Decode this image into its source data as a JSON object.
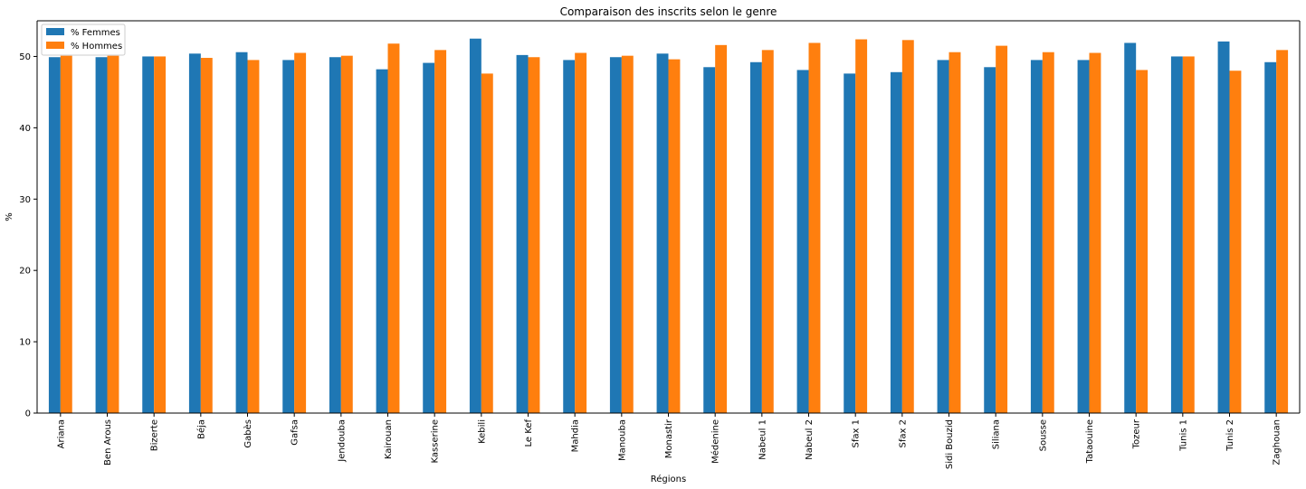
{
  "chart_data": {
    "type": "bar",
    "title": "Comparaison des inscrits selon le genre",
    "xlabel": "Régions",
    "ylabel": "%",
    "ylim": [
      0,
      55
    ],
    "yticks": [
      0,
      10,
      20,
      30,
      40,
      50
    ],
    "grid": false,
    "legend_position": "top-left",
    "categories": [
      "Ariana",
      "Ben Arous",
      "Bizerte",
      "Béja",
      "Gabès",
      "Gafsa",
      "Jendouba",
      "Kairouan",
      "Kasserine",
      "Kebili",
      "Le Kef",
      "Mahdia",
      "Manouba",
      "Monastir",
      "Médenine",
      "Nabeul 1",
      "Nabeul 2",
      "Sfax 1",
      "Sfax 2",
      "Sidi Bouzid",
      "Siliana",
      "Sousse",
      "Tataouine",
      "Tozeur",
      "Tunis 1",
      "Tunis 2",
      "Zaghouan"
    ],
    "series": [
      {
        "name": "% Femmes",
        "color": "#1f77b4",
        "values": [
          49.9,
          49.9,
          50.0,
          50.4,
          50.6,
          49.5,
          49.9,
          48.2,
          49.1,
          52.5,
          50.2,
          49.5,
          49.9,
          50.4,
          48.5,
          49.2,
          48.1,
          47.6,
          47.8,
          49.5,
          48.5,
          49.5,
          49.5,
          51.9,
          50.0,
          52.1,
          49.2
        ]
      },
      {
        "name": "% Hommes",
        "color": "#ff7f0e",
        "values": [
          50.1,
          50.1,
          50.0,
          49.8,
          49.5,
          50.5,
          50.1,
          51.8,
          50.9,
          47.6,
          49.9,
          50.5,
          50.1,
          49.6,
          51.6,
          50.9,
          51.9,
          52.4,
          52.3,
          50.6,
          51.5,
          50.6,
          50.5,
          48.1,
          50.0,
          48.0,
          50.9
        ]
      }
    ]
  }
}
